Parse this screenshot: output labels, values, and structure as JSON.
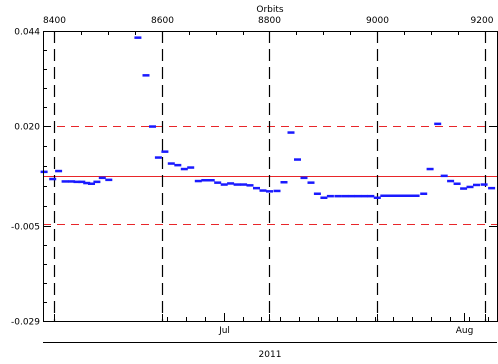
{
  "chart_data": {
    "type": "scatter",
    "marker": "short horizontal dash",
    "top_axis": {
      "label": "Orbits",
      "ticks": [
        "8400",
        "8600",
        "8800",
        "9000",
        "9200"
      ],
      "tick_values": [
        8400,
        8600,
        8800,
        9000,
        9200
      ],
      "range": [
        8380,
        9222
      ]
    },
    "bottom_axis": {
      "month_ticks": [
        {
          "label": "Jul",
          "orbit": 8715
        },
        {
          "label": "Aug",
          "orbit": 9160
        }
      ],
      "year_label": "2011"
    },
    "y_axis": {
      "ticks": [
        "0.044",
        "0.020",
        "-0.005",
        "-0.029"
      ],
      "tick_values": [
        0.044,
        0.02,
        -0.005,
        -0.029
      ],
      "range": [
        -0.029,
        0.044
      ]
    },
    "reference_lines": [
      {
        "y": 0.0076,
        "style": "solid",
        "color": "#e8262a"
      },
      {
        "y": 0.02,
        "style": "dashed",
        "color": "#e8262a"
      },
      {
        "y": -0.0046,
        "style": "dashed",
        "color": "#e8262a"
      }
    ],
    "vertical_dashed_lines_at_orbits": [
      8400,
      8600,
      8800,
      9000,
      9200
    ],
    "series": [
      {
        "color": "#1a1aff",
        "points": [
          [
            8382,
            0.0086
          ],
          [
            8398,
            0.0068
          ],
          [
            8409,
            0.0088
          ],
          [
            8421,
            0.0062
          ],
          [
            8433,
            0.0062
          ],
          [
            8443,
            0.0061
          ],
          [
            8452,
            0.0061
          ],
          [
            8461,
            0.0058
          ],
          [
            8470,
            0.0056
          ],
          [
            8480,
            0.0061
          ],
          [
            8490,
            0.0071
          ],
          [
            8502,
            0.0066
          ],
          [
            8556,
            0.0424
          ],
          [
            8571,
            0.0329
          ],
          [
            8583,
            0.02
          ],
          [
            8594,
            0.0122
          ],
          [
            8606,
            0.0137
          ],
          [
            8618,
            0.0107
          ],
          [
            8630,
            0.0103
          ],
          [
            8642,
            0.0093
          ],
          [
            8654,
            0.0097
          ],
          [
            8668,
            0.0063
          ],
          [
            8680,
            0.0065
          ],
          [
            8692,
            0.0065
          ],
          [
            8704,
            0.0059
          ],
          [
            8716,
            0.0054
          ],
          [
            8728,
            0.0057
          ],
          [
            8740,
            0.0054
          ],
          [
            8752,
            0.0054
          ],
          [
            8764,
            0.0052
          ],
          [
            8776,
            0.0045
          ],
          [
            8788,
            0.0039
          ],
          [
            8800,
            0.0037
          ],
          [
            8814,
            0.0038
          ],
          [
            8827,
            0.006
          ],
          [
            8840,
            0.0185
          ],
          [
            8852,
            0.0117
          ],
          [
            8864,
            0.0071
          ],
          [
            8877,
            0.0059
          ],
          [
            8889,
            0.0031
          ],
          [
            8901,
            0.0021
          ],
          [
            8913,
            0.0025
          ],
          [
            8927,
            0.0025
          ],
          [
            8940,
            0.0025
          ],
          [
            8952,
            0.0025
          ],
          [
            8964,
            0.0025
          ],
          [
            8976,
            0.0025
          ],
          [
            8988,
            0.0025
          ],
          [
            9000,
            0.0021
          ],
          [
            9012,
            0.0026
          ],
          [
            9024,
            0.0026
          ],
          [
            9036,
            0.0026
          ],
          [
            9048,
            0.0026
          ],
          [
            9060,
            0.0026
          ],
          [
            9072,
            0.0026
          ],
          [
            9086,
            0.0031
          ],
          [
            9098,
            0.0093
          ],
          [
            9112,
            0.0207
          ],
          [
            9124,
            0.0076
          ],
          [
            9136,
            0.0063
          ],
          [
            9148,
            0.0056
          ],
          [
            9160,
            0.0044
          ],
          [
            9172,
            0.0048
          ],
          [
            9184,
            0.0053
          ],
          [
            9198,
            0.0054
          ],
          [
            9212,
            0.0045
          ]
        ]
      }
    ]
  }
}
